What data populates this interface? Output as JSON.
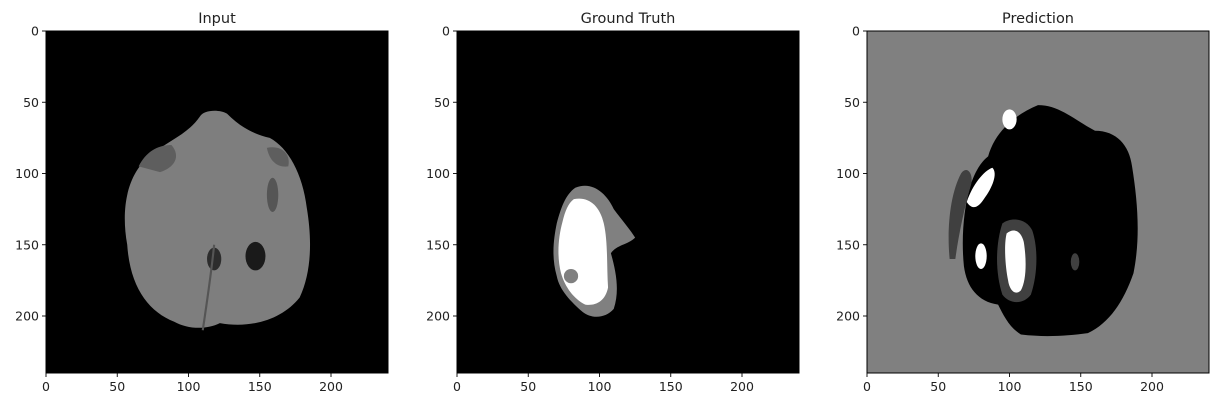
{
  "chart_data": [
    {
      "type": "image",
      "title": "Input",
      "xlim": [
        0,
        240
      ],
      "ylim": [
        240,
        0
      ],
      "x_ticks": [
        0,
        50,
        100,
        150,
        200
      ],
      "y_ticks": [
        0,
        50,
        100,
        150,
        200
      ],
      "grid": false
    },
    {
      "type": "image",
      "title": "Ground Truth",
      "xlim": [
        0,
        240
      ],
      "ylim": [
        240,
        0
      ],
      "x_ticks": [
        0,
        50,
        100,
        150,
        200
      ],
      "y_ticks": [
        0,
        50,
        100,
        150,
        200
      ],
      "grid": false
    },
    {
      "type": "image",
      "title": "Prediction",
      "xlim": [
        0,
        240
      ],
      "ylim": [
        240,
        0
      ],
      "x_ticks": [
        0,
        50,
        100,
        150,
        200
      ],
      "y_ticks": [
        0,
        50,
        100,
        150,
        200
      ],
      "grid": false
    }
  ]
}
